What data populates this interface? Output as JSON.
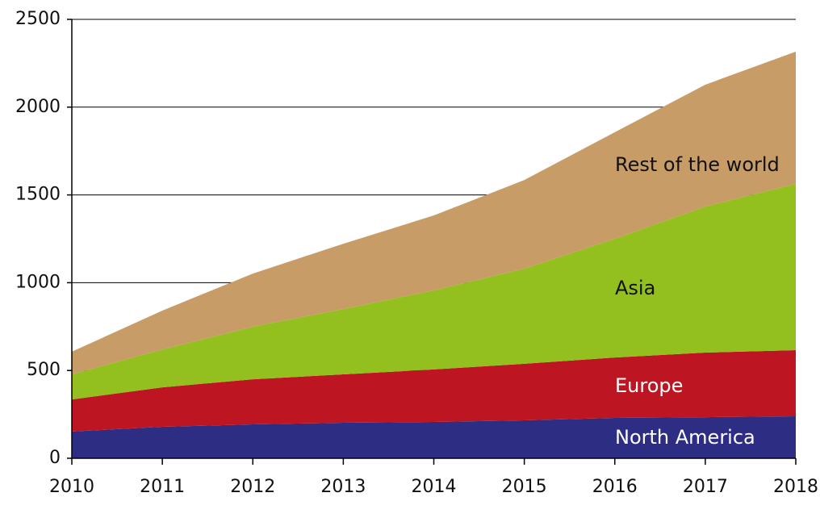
{
  "chart_data": {
    "type": "stacked_area",
    "categories": [
      "2010",
      "2011",
      "2012",
      "2013",
      "2014",
      "2015",
      "2016",
      "2017",
      "2018"
    ],
    "series": [
      {
        "name": "North America",
        "color": "#2e2d84",
        "values": [
          152,
          179,
          193,
          202,
          207,
          216,
          230,
          234,
          239
        ]
      },
      {
        "name": "Europe",
        "color": "#be1522",
        "values": [
          183,
          225,
          257,
          276,
          299,
          322,
          344,
          368,
          377
        ]
      },
      {
        "name": "Asia",
        "color": "#93c01f",
        "values": [
          143,
          216,
          299,
          372,
          450,
          542,
          676,
          832,
          947
        ]
      },
      {
        "name": "Rest of the world",
        "color": "#c89c66",
        "values": [
          129,
          221,
          303,
          372,
          427,
          505,
          607,
          694,
          753
        ]
      }
    ],
    "ylim": [
      0,
      2500
    ],
    "yticks": [
      0,
      500,
      1000,
      1500,
      2000,
      2500
    ],
    "grid": true
  }
}
